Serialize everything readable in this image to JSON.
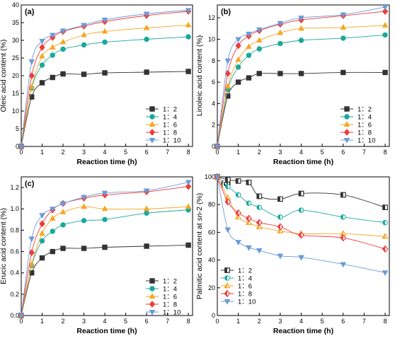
{
  "chart_data": [
    {
      "type": "line",
      "panel_label": "(a)",
      "xlabel": "Reaction time (h)",
      "ylabel": "Oleic acid content (%)",
      "xlim": [
        0,
        8.2
      ],
      "ylim": [
        0,
        40
      ],
      "xticks": [
        0,
        1,
        2,
        3,
        4,
        5,
        6,
        7,
        8
      ],
      "yticks": [
        0,
        5,
        10,
        15,
        20,
        25,
        30,
        35,
        40
      ],
      "ytick_labels": [
        "0",
        "5",
        "10",
        "15",
        "20",
        "25",
        "30",
        "35",
        "40"
      ],
      "legend_position": "bottom-right",
      "x": [
        0,
        0.5,
        1,
        1.5,
        2,
        3,
        4,
        6,
        8
      ],
      "series": [
        {
          "name": "1：2",
          "color": "#333333",
          "marker": "square",
          "values": [
            0,
            14.0,
            18.0,
            19.5,
            20.5,
            20.4,
            20.8,
            21.0,
            21.2
          ]
        },
        {
          "name": "1：4",
          "color": "#1aa89a",
          "marker": "circle",
          "values": [
            0,
            16.5,
            23.0,
            25.8,
            27.5,
            28.7,
            29.5,
            30.3,
            31.0
          ]
        },
        {
          "name": "1：6",
          "color": "#f5a623",
          "marker": "triangle-up",
          "values": [
            0,
            16.8,
            25.5,
            28.0,
            29.5,
            31.5,
            32.5,
            33.5,
            34.3
          ]
        },
        {
          "name": "1：8",
          "color": "#ee3b3b",
          "marker": "diamond",
          "values": [
            0,
            20.0,
            28.0,
            30.8,
            32.5,
            34.0,
            35.3,
            37.0,
            38.2
          ]
        },
        {
          "name": "1：10",
          "color": "#6b9bd8",
          "marker": "triangle-down",
          "values": [
            0,
            24.0,
            29.8,
            31.5,
            32.7,
            34.3,
            35.8,
            37.5,
            38.5
          ]
        }
      ]
    },
    {
      "type": "line",
      "panel_label": "(b)",
      "xlabel": "Reaction time (h)",
      "ylabel": "Linoleic acid content (%)",
      "xlim": [
        0,
        8.2
      ],
      "ylim": [
        0,
        13.2
      ],
      "xticks": [
        0,
        1,
        2,
        3,
        4,
        5,
        6,
        7,
        8
      ],
      "yticks": [
        0,
        2,
        4,
        6,
        8,
        10,
        12
      ],
      "ytick_labels": [
        "0",
        "2",
        "4",
        "6",
        "8",
        "10",
        "12"
      ],
      "legend_position": "bottom-right",
      "x": [
        0,
        0.5,
        1,
        1.5,
        2,
        3,
        4,
        6,
        8
      ],
      "series": [
        {
          "name": "1：2",
          "color": "#333333",
          "marker": "square",
          "values": [
            0,
            4.7,
            6.0,
            6.4,
            6.8,
            6.8,
            6.8,
            6.9,
            6.9
          ]
        },
        {
          "name": "1：4",
          "color": "#1aa89a",
          "marker": "circle",
          "values": [
            0,
            5.3,
            7.4,
            8.5,
            9.1,
            9.6,
            9.9,
            10.1,
            10.4
          ]
        },
        {
          "name": "1：6",
          "color": "#f5a623",
          "marker": "triangle-up",
          "values": [
            0,
            5.6,
            8.1,
            9.3,
            9.9,
            10.6,
            11.0,
            11.1,
            11.3
          ]
        },
        {
          "name": "1：8",
          "color": "#ee3b3b",
          "marker": "diamond",
          "values": [
            0,
            6.8,
            9.4,
            10.3,
            10.8,
            11.4,
            11.8,
            12.2,
            12.6
          ]
        },
        {
          "name": "1：10",
          "color": "#6b9bd8",
          "marker": "triangle-down",
          "values": [
            0,
            8.0,
            10.0,
            10.5,
            10.9,
            11.5,
            12.0,
            12.3,
            13.0
          ]
        }
      ]
    },
    {
      "type": "line",
      "panel_label": "(c)",
      "xlabel": "Reaction time (h)",
      "ylabel": "Erucic acid content (%)",
      "xlim": [
        0,
        8.2
      ],
      "ylim": [
        0,
        1.3
      ],
      "xticks": [
        0,
        1,
        2,
        3,
        4,
        5,
        6,
        7,
        8
      ],
      "yticks": [
        0,
        0.2,
        0.4,
        0.6,
        0.8,
        1.0,
        1.2
      ],
      "ytick_labels": [
        "0.0",
        "0.2",
        "0.4",
        "0.6",
        "0.8",
        "1.0",
        "1.2"
      ],
      "legend_position": "bottom-right",
      "x": [
        0,
        0.5,
        1,
        1.5,
        2,
        3,
        4,
        6,
        8
      ],
      "series": [
        {
          "name": "1：2",
          "color": "#333333",
          "marker": "square",
          "values": [
            0,
            0.4,
            0.54,
            0.6,
            0.63,
            0.63,
            0.64,
            0.65,
            0.66
          ]
        },
        {
          "name": "1：4",
          "color": "#1aa89a",
          "marker": "circle",
          "values": [
            0,
            0.47,
            0.7,
            0.79,
            0.85,
            0.89,
            0.9,
            0.96,
            0.99
          ]
        },
        {
          "name": "1：6",
          "color": "#f5a623",
          "marker": "triangle-up",
          "values": [
            0,
            0.48,
            0.77,
            0.91,
            0.97,
            1.02,
            1.0,
            1.0,
            1.02
          ]
        },
        {
          "name": "1：8",
          "color": "#ee3b3b",
          "marker": "diamond",
          "values": [
            0,
            0.59,
            0.86,
            0.99,
            1.05,
            1.1,
            1.13,
            1.16,
            1.21
          ]
        },
        {
          "name": "1：10",
          "color": "#6b9bd8",
          "marker": "triangle-down",
          "values": [
            0,
            0.72,
            0.94,
            1.0,
            1.05,
            1.11,
            1.15,
            1.17,
            1.25
          ]
        }
      ]
    },
    {
      "type": "line",
      "panel_label": "(d)",
      "xlabel": "Reaction time (h)",
      "ylabel_parts": [
        "Palmitic acid content at ",
        "sn",
        "-2 (%)"
      ],
      "xlim": [
        0,
        8.2
      ],
      "ylim": [
        0,
        100
      ],
      "xticks": [
        0,
        1,
        2,
        3,
        4,
        5,
        6,
        7,
        8
      ],
      "yticks": [
        0,
        20,
        40,
        60,
        80,
        100
      ],
      "ytick_labels": [
        "0",
        "20",
        "40",
        "60",
        "80",
        "100"
      ],
      "legend_position": "bottom-left",
      "x": [
        0,
        0.5,
        1,
        1.5,
        2,
        3,
        4,
        6,
        8
      ],
      "series": [
        {
          "name": "1：2",
          "color": "#333333",
          "marker": "square-half",
          "values": [
            100,
            98,
            97,
            96,
            86,
            84,
            88,
            87,
            78
          ]
        },
        {
          "name": "1：4",
          "color": "#1aa89a",
          "marker": "circle-half",
          "values": [
            100,
            93,
            87,
            81,
            78,
            71,
            76,
            71,
            67
          ]
        },
        {
          "name": "1：6",
          "color": "#f5a623",
          "marker": "triangle-up-half",
          "values": [
            100,
            85,
            71,
            67,
            64,
            61,
            59,
            59,
            57
          ]
        },
        {
          "name": "1：8",
          "color": "#ee3b3b",
          "marker": "diamond-half",
          "values": [
            100,
            82,
            74,
            70,
            67,
            64,
            58,
            56,
            48
          ]
        },
        {
          "name": "1：10",
          "color": "#6b9bd8",
          "marker": "triangle-down",
          "values": [
            100,
            62,
            53,
            49,
            47,
            43,
            42,
            37,
            31
          ]
        }
      ]
    }
  ]
}
